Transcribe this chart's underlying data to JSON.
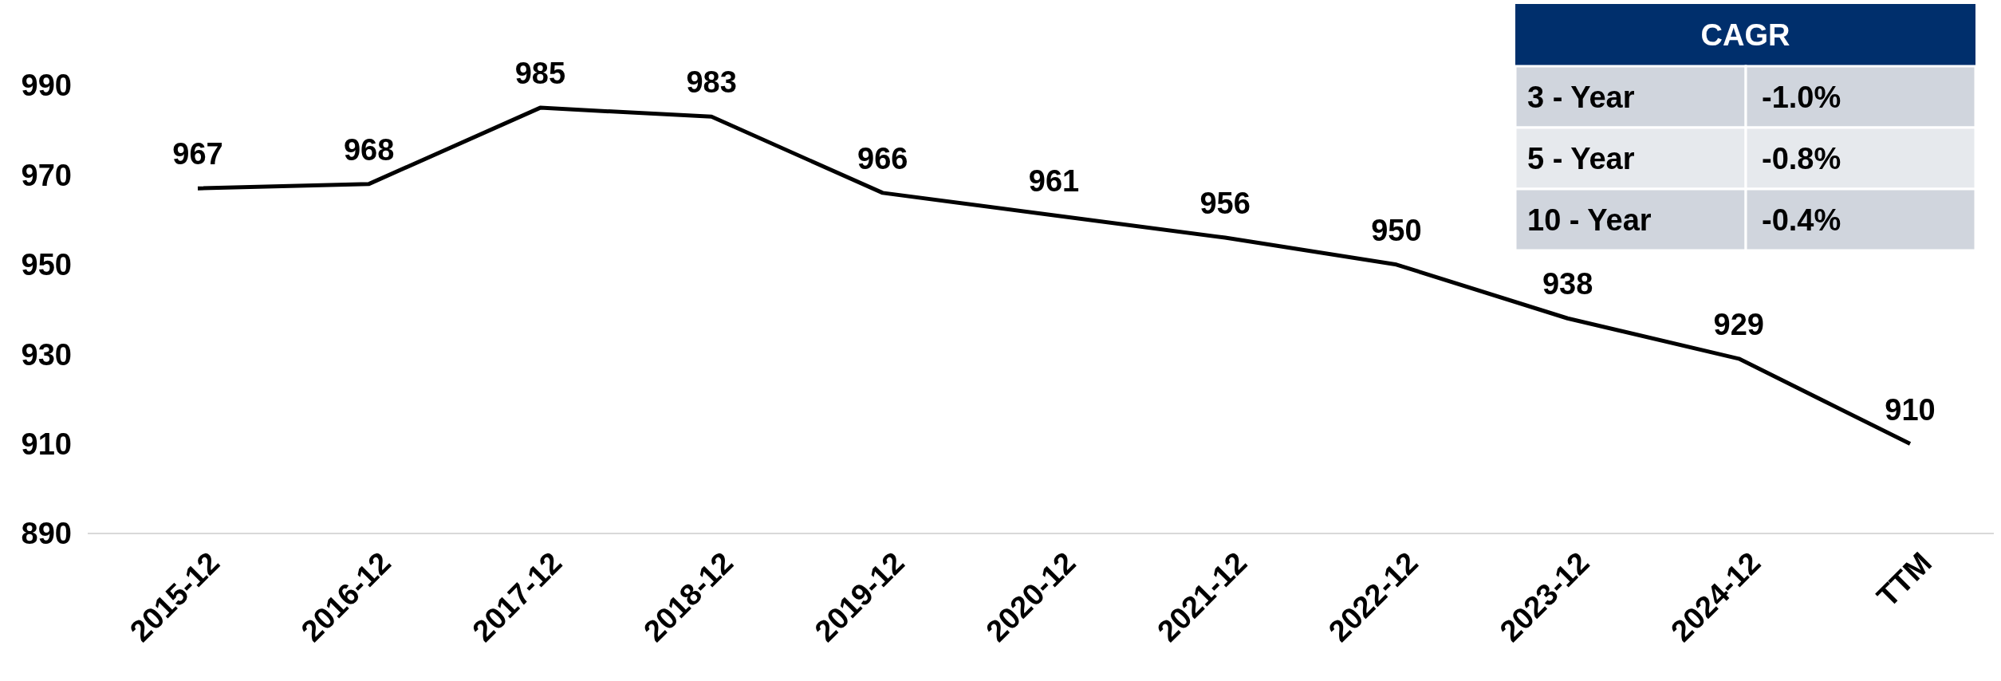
{
  "chart_data": [
    {
      "type": "line",
      "categories": [
        "2015-12",
        "2016-12",
        "2017-12",
        "2018-12",
        "2019-12",
        "2020-12",
        "2021-12",
        "2022-12",
        "2023-12",
        "2024-12",
        "TTM"
      ],
      "series": [
        {
          "color": "#000000",
          "values": [
            967,
            968,
            985,
            983,
            966,
            961,
            956,
            950,
            938,
            929,
            910
          ]
        }
      ],
      "ylim": [
        890,
        990
      ],
      "yticks": [
        890,
        910,
        930,
        950,
        970,
        990
      ],
      "data_labels": true,
      "grid": false,
      "marker": "none",
      "line_style": "solid"
    },
    {
      "type": "other",
      "title": "CAGR",
      "annotations": [
        "3 - Year",
        "-1.0%",
        "5 - Year",
        "-0.8%",
        "10 - Year",
        "-0.4%"
      ]
    }
  ]
}
